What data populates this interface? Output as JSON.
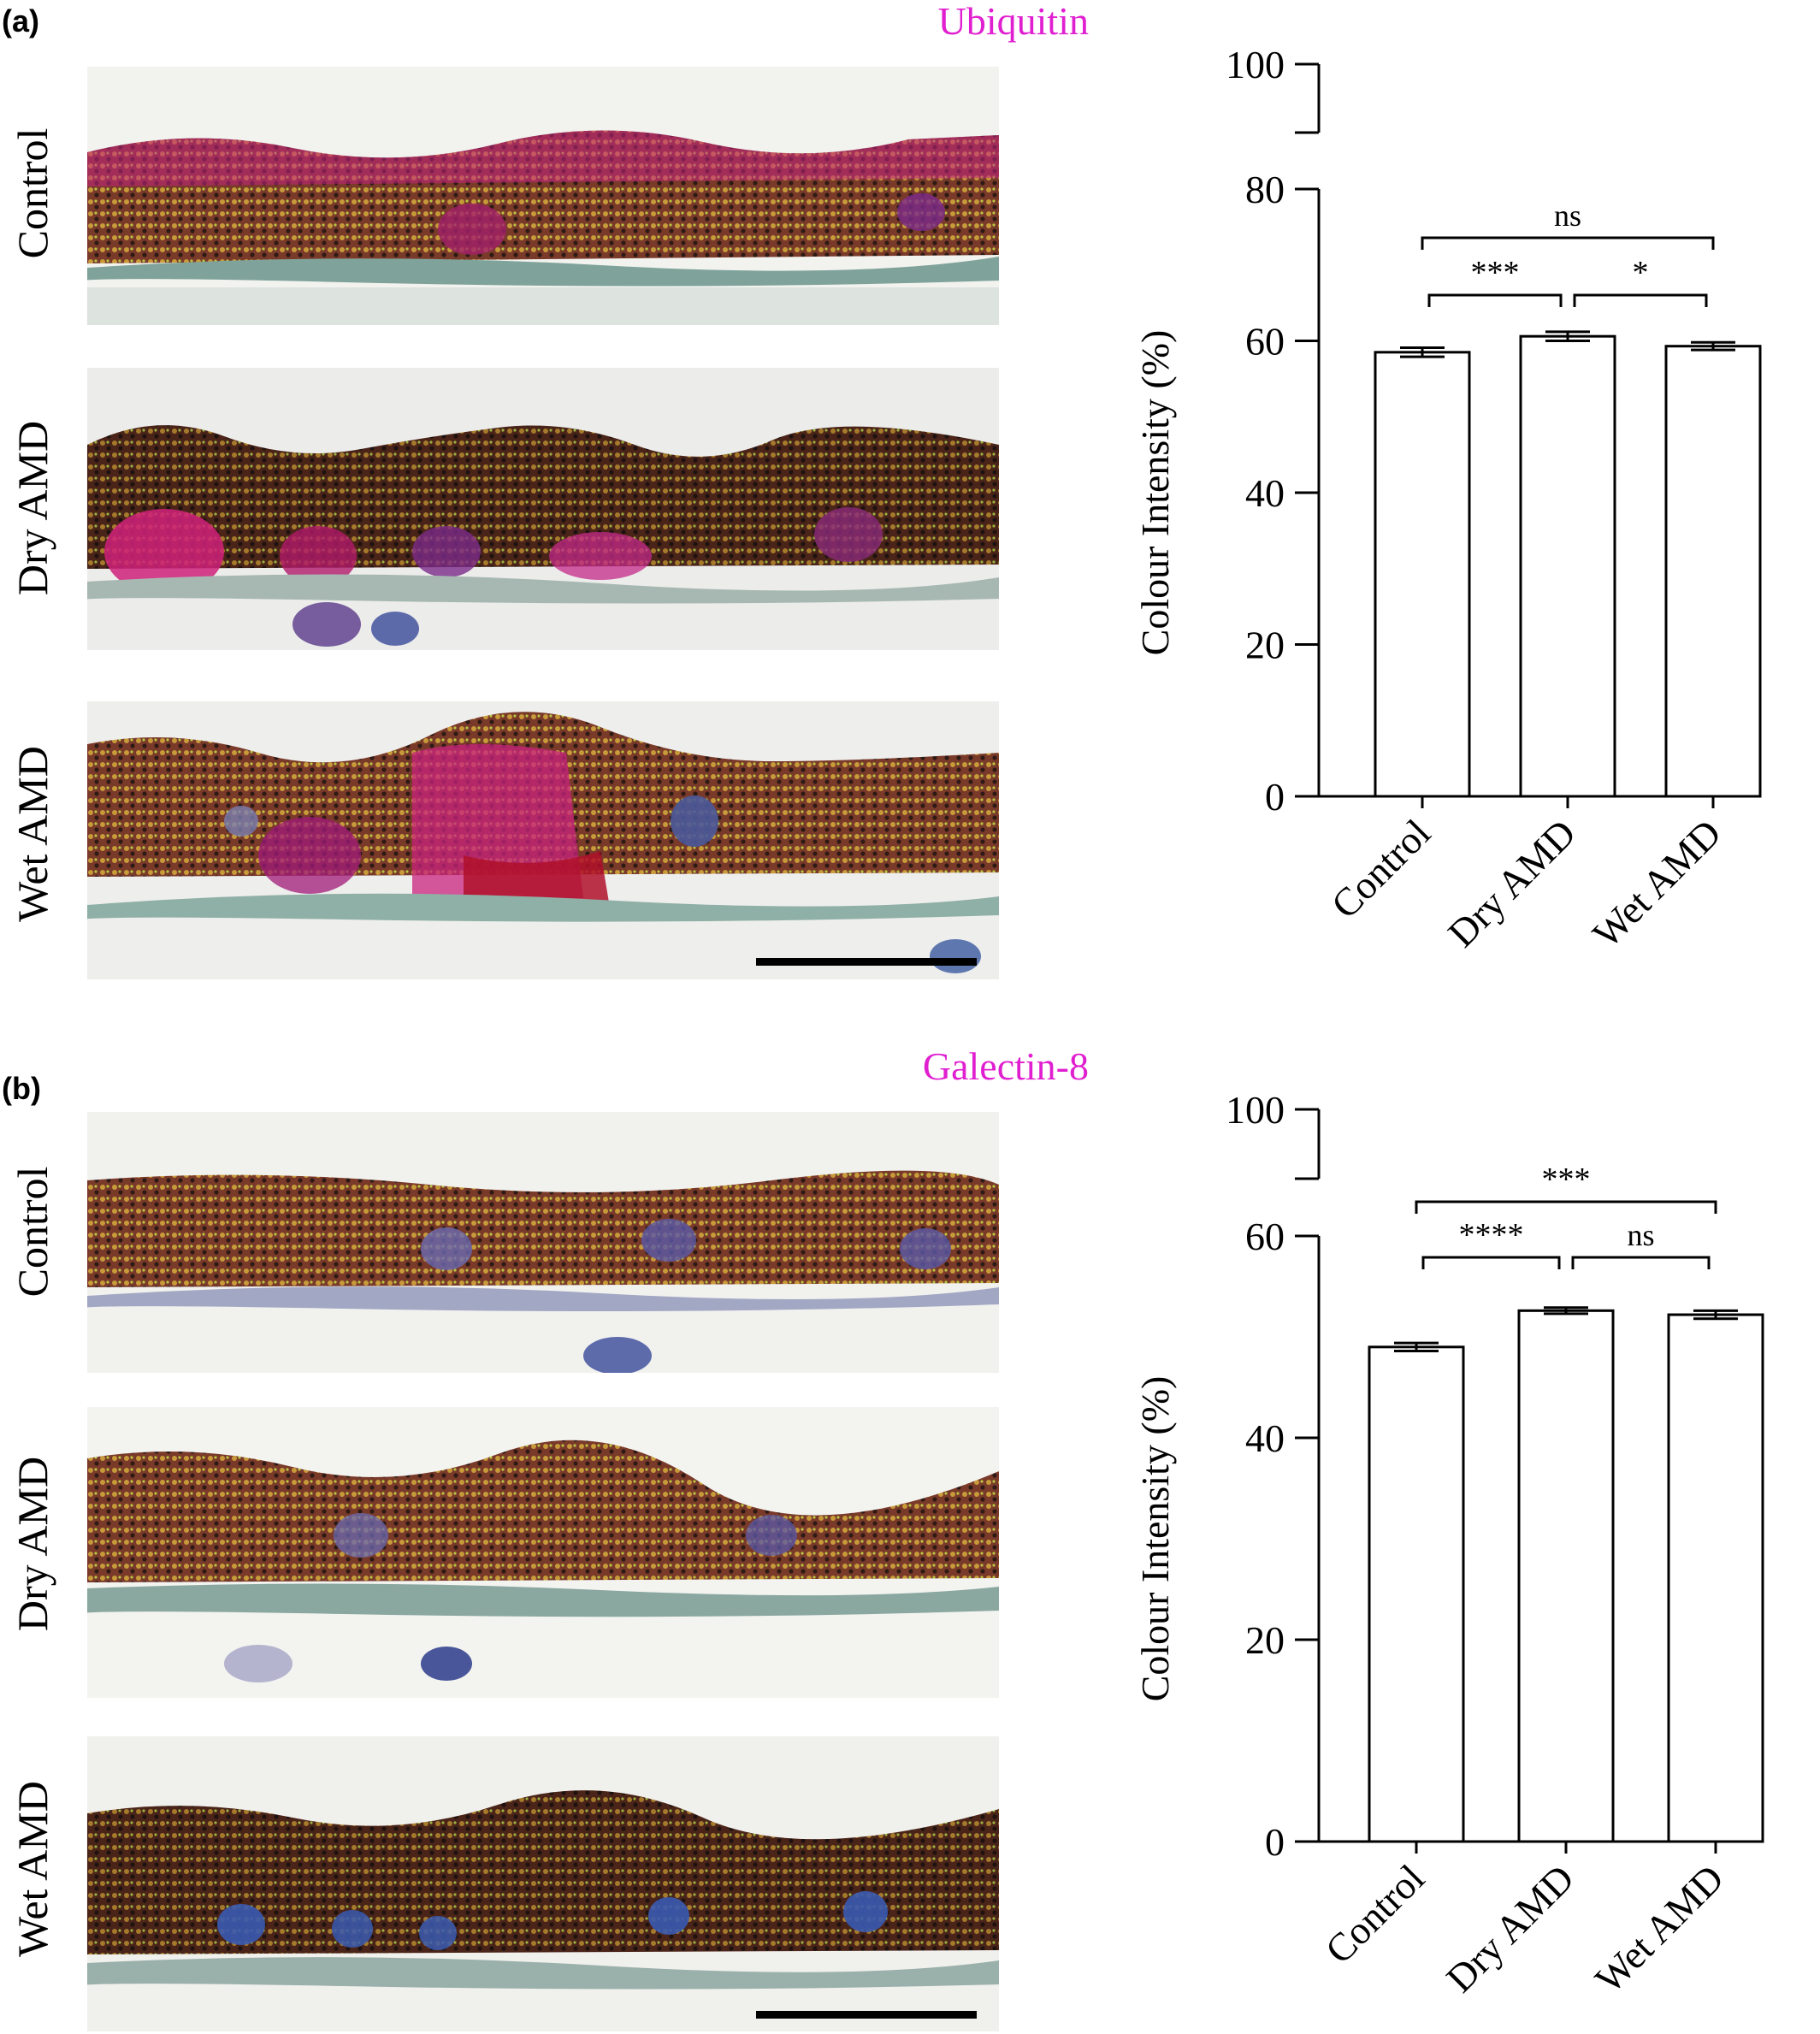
{
  "panels": [
    {
      "letter": "(a)",
      "stain": "Ubiquitin",
      "stain_color": "#e020d0",
      "rows": [
        "Control",
        "Dry AMD",
        "Wet AMD"
      ]
    },
    {
      "letter": "(b)",
      "stain": "Galectin-8",
      "stain_color": "#e020d0",
      "rows": [
        "Control",
        "Dry AMD",
        "Wet AMD"
      ]
    }
  ],
  "chart_data": [
    {
      "type": "bar",
      "categories": [
        "Control",
        "Dry AMD",
        "Wet AMD"
      ],
      "values": [
        58.5,
        60.6,
        59.3
      ],
      "errors": [
        0.6,
        0.6,
        0.5
      ],
      "ylabel": "Colour Intensity (%)",
      "ylim": [
        0,
        100
      ],
      "axis_break": [
        80,
        90
      ],
      "yticks": [
        0,
        20,
        40,
        60,
        80,
        100
      ],
      "grid": false,
      "significance": [
        {
          "from": "Control",
          "to": "Dry AMD",
          "label": "***"
        },
        {
          "from": "Dry AMD",
          "to": "Wet AMD",
          "label": "*"
        },
        {
          "from": "Control",
          "to": "Wet AMD",
          "label": "ns"
        }
      ]
    },
    {
      "type": "bar",
      "categories": [
        "Control",
        "Dry AMD",
        "Wet AMD"
      ],
      "values": [
        49.0,
        52.6,
        52.2
      ],
      "errors": [
        0.4,
        0.3,
        0.4
      ],
      "ylabel": "Colour Intensity (%)",
      "ylim": [
        0,
        100
      ],
      "axis_break": [
        60,
        90
      ],
      "yticks": [
        0,
        20,
        40,
        60,
        100
      ],
      "grid": false,
      "significance": [
        {
          "from": "Control",
          "to": "Dry AMD",
          "label": "****"
        },
        {
          "from": "Dry AMD",
          "to": "Wet AMD",
          "label": "ns"
        },
        {
          "from": "Control",
          "to": "Wet AMD",
          "label": "***"
        }
      ]
    }
  ]
}
